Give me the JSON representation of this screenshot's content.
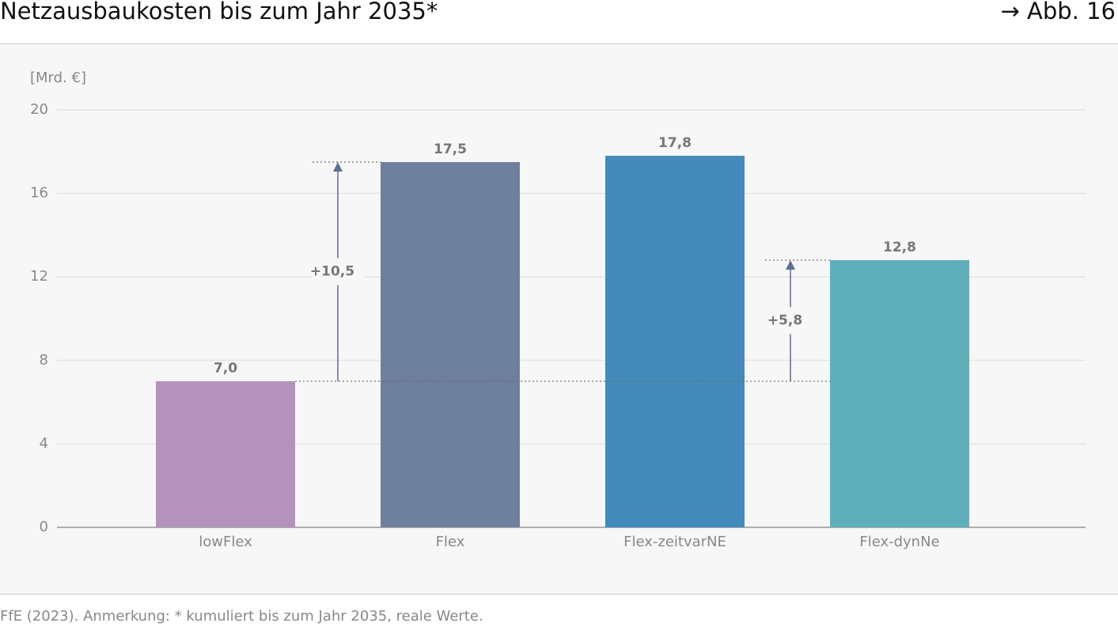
{
  "chart_data": {
    "type": "bar",
    "title": "Netzausbaukosten bis zum Jahr 2035*",
    "figure_label": "→ Abb. 16",
    "y_label": "[Mrd. €]",
    "categories": [
      "lowFlex",
      "Flex",
      "Flex-zeitvarNE",
      "Flex-dynNe"
    ],
    "values": [
      7.0,
      17.5,
      17.8,
      12.8
    ],
    "value_labels": [
      "7,0",
      "17,5",
      "17,8",
      "12,8"
    ],
    "colors": [
      "#b592bd",
      "#6f809e",
      "#448bbb",
      "#5eafb9"
    ],
    "annotations": [
      {
        "value": 10.5,
        "label": "+10,5"
      },
      {
        "value": 5.8,
        "label": "+5,8"
      }
    ],
    "ylim": [
      0,
      20
    ],
    "yticks": [
      0,
      4,
      8,
      12,
      16,
      20
    ],
    "grid": true,
    "source": "FfE (2023). Anmerkung: * kumuliert bis zum Jahr 2035, reale Werte."
  }
}
